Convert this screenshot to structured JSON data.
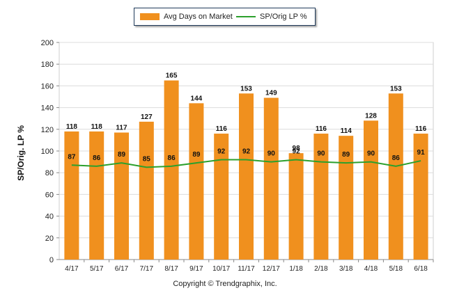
{
  "chart_data": {
    "type": "bar",
    "categories": [
      "4/17",
      "5/17",
      "6/17",
      "7/17",
      "8/17",
      "9/17",
      "10/17",
      "11/17",
      "12/17",
      "1/18",
      "2/18",
      "3/18",
      "4/18",
      "5/18",
      "6/18"
    ],
    "series": [
      {
        "name": "Avg Days on Market",
        "type": "bar",
        "color": "#f0901e",
        "values": [
          118,
          118,
          117,
          127,
          165,
          144,
          116,
          153,
          149,
          98,
          116,
          114,
          128,
          153,
          116
        ]
      },
      {
        "name": "SP/Orig LP %",
        "type": "line",
        "color": "#2ca02c",
        "values": [
          87,
          86,
          89,
          85,
          86,
          89,
          92,
          92,
          90,
          92,
          90,
          89,
          90,
          86,
          91
        ]
      }
    ],
    "ylabel": "SP/Orig. LP %",
    "ylim": [
      0,
      200
    ],
    "yticks": [
      0,
      20,
      40,
      60,
      80,
      100,
      120,
      140,
      160,
      180,
      200
    ],
    "grid": true,
    "legend_position": "top-center"
  },
  "legend": {
    "bar_label": "Avg Days on Market",
    "line_label": "SP/Orig LP %"
  },
  "footer": {
    "copyright": "Copyright © Trendgraphix, Inc."
  }
}
